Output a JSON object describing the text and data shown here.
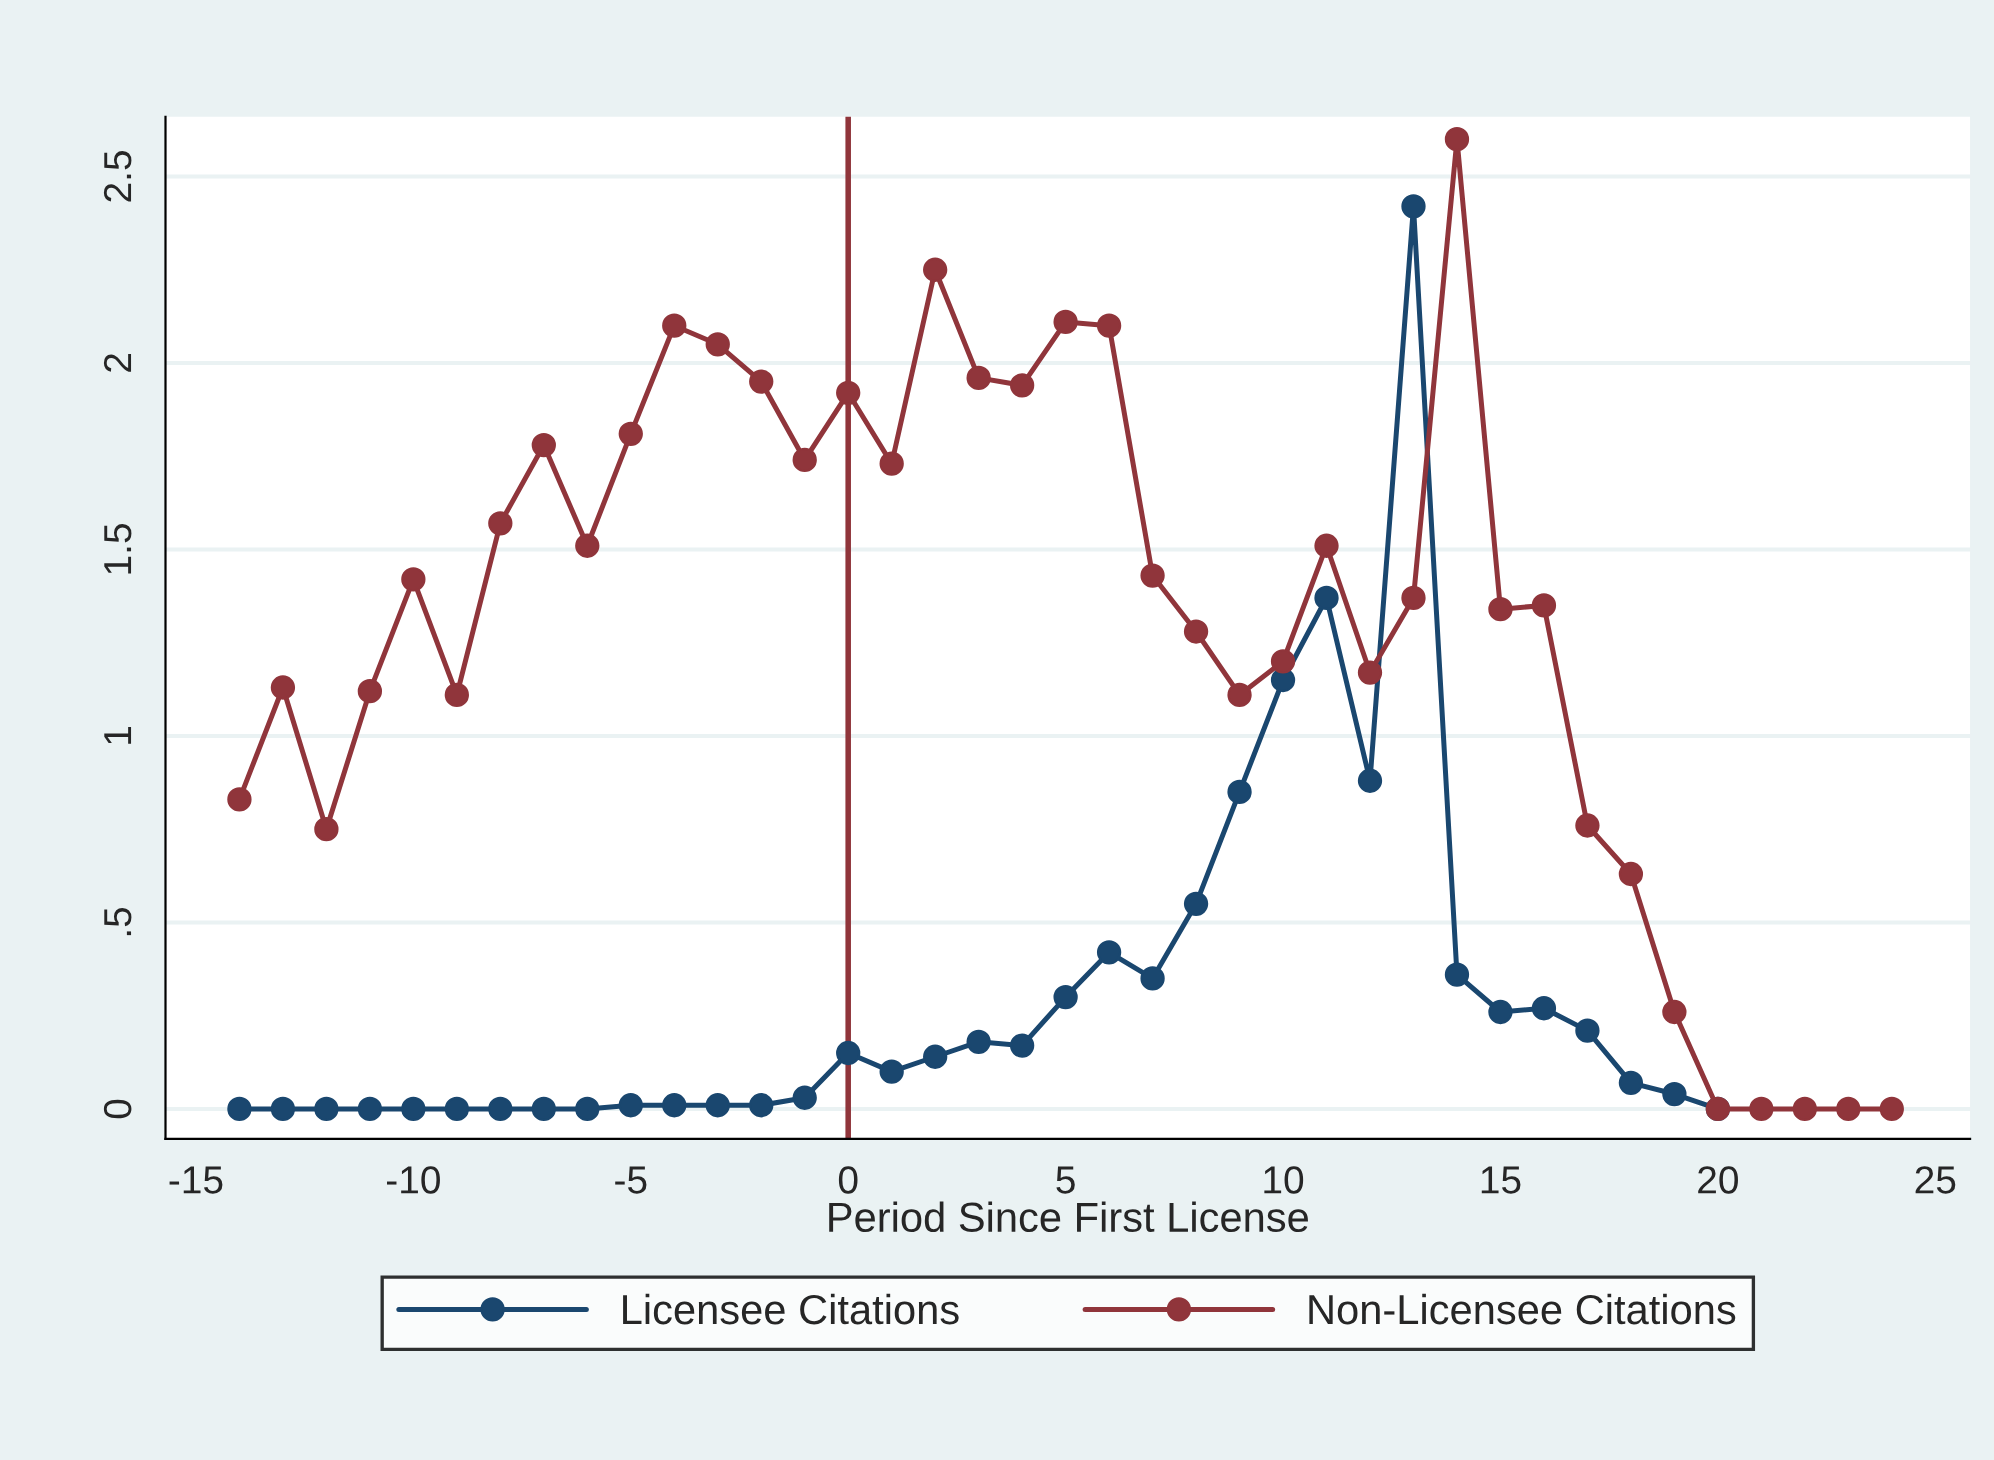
{
  "chart_data": {
    "type": "line",
    "xlabel": "Period Since First License",
    "xlim": [
      -15.7,
      25.8
    ],
    "xticks": [
      -15,
      -10,
      -5,
      0,
      5,
      10,
      15,
      20,
      25
    ],
    "ylim": [
      -0.08,
      2.66
    ],
    "yticks": [
      0,
      {
        "value": 0.5,
        "label": ".5"
      },
      1,
      1.5,
      2,
      2.5
    ],
    "grid": "y",
    "legend": "bottom",
    "marker": "circle",
    "line_style": "solid",
    "ref_lines": [
      {
        "axis": "x",
        "value": 0,
        "color": "#90353b"
      }
    ],
    "series": [
      {
        "name": "Licensee Citations",
        "color": "#1a476f",
        "x": [
          -14,
          -13,
          -12,
          -11,
          -10,
          -9,
          -8,
          -7,
          -6,
          -5,
          -4,
          -3,
          -2,
          -1,
          0,
          1,
          2,
          3,
          4,
          5,
          6,
          7,
          8,
          9,
          10,
          11,
          12,
          13,
          14,
          15,
          16,
          17,
          18,
          19,
          20
        ],
        "values": [
          0,
          0,
          0,
          0,
          0,
          0,
          0,
          0,
          0,
          0.01,
          0.01,
          0.01,
          0.01,
          0.03,
          0.15,
          0.1,
          0.14,
          0.18,
          0.17,
          0.3,
          0.42,
          0.35,
          0.55,
          0.85,
          1.15,
          1.37,
          0.88,
          2.42,
          0.36,
          0.26,
          0.27,
          0.21,
          0.07,
          0.04,
          0
        ]
      },
      {
        "name": "Non-Licensee Citations",
        "color": "#90353b",
        "x": [
          -14,
          -13,
          -12,
          -11,
          -10,
          -9,
          -8,
          -7,
          -6,
          -5,
          -4,
          -3,
          -2,
          -1,
          0,
          1,
          2,
          3,
          4,
          5,
          6,
          7,
          8,
          9,
          10,
          11,
          12,
          13,
          14,
          15,
          16,
          17,
          18,
          19,
          20,
          21,
          22,
          23,
          24
        ],
        "values": [
          0.83,
          1.13,
          0.75,
          1.12,
          1.42,
          1.11,
          1.57,
          1.78,
          1.51,
          1.81,
          2.1,
          2.05,
          1.95,
          1.74,
          1.92,
          1.73,
          2.25,
          1.96,
          1.94,
          2.11,
          2.1,
          1.43,
          1.28,
          1.11,
          1.2,
          1.51,
          1.17,
          1.37,
          2.6,
          1.34,
          1.35,
          0.76,
          0.63,
          0.26,
          0,
          0,
          0,
          0,
          0
        ]
      }
    ]
  }
}
